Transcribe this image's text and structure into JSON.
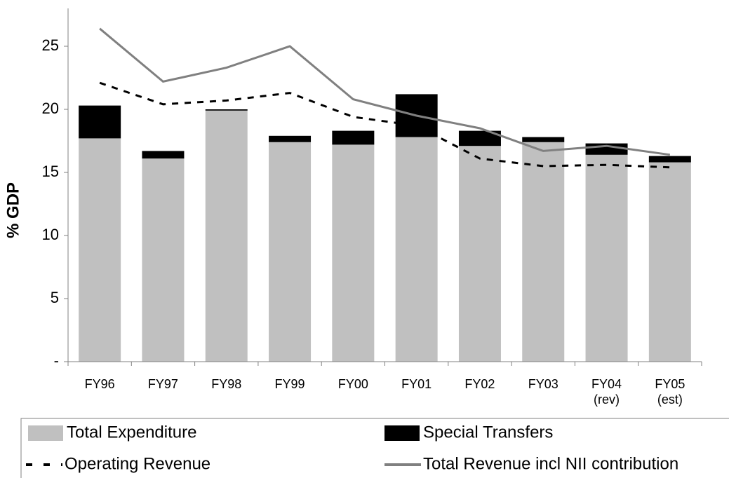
{
  "chart_data": {
    "type": "bar",
    "y_label": "% GDP",
    "categories": [
      "FY96",
      "FY97",
      "FY98",
      "FY99",
      "FY00",
      "FY01",
      "FY02",
      "FY03",
      "FY04\n(rev)",
      "FY05\n(est)"
    ],
    "ylim": [
      0,
      28
    ],
    "yticks": [
      {
        "value": 0,
        "label": "-"
      },
      5,
      10,
      15,
      20,
      25
    ],
    "series": [
      {
        "name": "Total Expenditure",
        "type": "bar",
        "color": "#c0c0c0",
        "values": [
          17.7,
          16.1,
          19.9,
          17.4,
          17.2,
          17.8,
          17.1,
          17.4,
          16.4,
          15.8
        ]
      },
      {
        "name": "Special Transfers",
        "type": "bar",
        "color": "#000000",
        "values": [
          2.6,
          0.6,
          0.1,
          0.5,
          1.1,
          3.4,
          1.2,
          0.4,
          0.9,
          0.5
        ]
      },
      {
        "name": "Operating Revenue",
        "type": "line",
        "dashed": true,
        "color": "#000000",
        "values": [
          22.1,
          20.4,
          20.7,
          21.3,
          19.4,
          18.7,
          16.1,
          15.5,
          15.6,
          15.4
        ]
      },
      {
        "name": "Total Revenue incl NII contribution",
        "type": "line",
        "dashed": false,
        "color": "#808080",
        "values": [
          26.4,
          22.2,
          23.3,
          25.0,
          20.8,
          19.5,
          18.5,
          16.7,
          17.1,
          16.4
        ]
      }
    ]
  }
}
